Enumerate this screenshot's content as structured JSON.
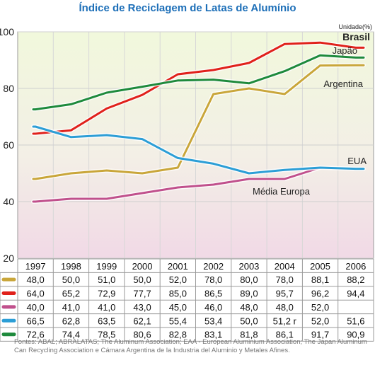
{
  "chart_data": {
    "type": "line",
    "title": "Índice de Reciclagem de Latas de Alumínio",
    "unit_label": "Unidade(%)",
    "ylim": [
      20,
      100
    ],
    "yticks": [
      20,
      40,
      60,
      80,
      100
    ],
    "grid": true,
    "background": "gradient light-green top to pink bottom",
    "categories": [
      "1997",
      "1998",
      "1999",
      "2000",
      "2001",
      "2002",
      "2003",
      "2004",
      "2005",
      "2006"
    ],
    "series": [
      {
        "name": "Argentina",
        "color": "#c9a63a",
        "values": [
          48.0,
          50.0,
          51.0,
          50.0,
          52.0,
          78.0,
          80.0,
          78.0,
          88.1,
          88.2
        ],
        "labels": [
          "48,0",
          "50,0",
          "51,0",
          "50,0",
          "52,0",
          "78,0",
          "80,0",
          "78,0",
          "88,1",
          "88,2"
        ]
      },
      {
        "name": "Brasil",
        "color": "#e0211b",
        "values": [
          64.0,
          65.2,
          72.9,
          77.7,
          85.0,
          86.5,
          89.0,
          95.7,
          96.2,
          94.4
        ],
        "labels": [
          "64,0",
          "65,2",
          "72,9",
          "77,7",
          "85,0",
          "86,5",
          "89,0",
          "95,7",
          "96,2",
          "94,4"
        ]
      },
      {
        "name": "Média Europa",
        "color": "#c0508c",
        "values": [
          40.0,
          41.0,
          41.0,
          43.0,
          45.0,
          46.0,
          48.0,
          48.0,
          52.0,
          null
        ],
        "labels": [
          "40,0",
          "41,0",
          "41,0",
          "43,0",
          "45,0",
          "46,0",
          "48,0",
          "48,0",
          "52,0",
          ""
        ]
      },
      {
        "name": "EUA",
        "color": "#2c9ed6",
        "values": [
          66.5,
          62.8,
          63.5,
          62.1,
          55.4,
          53.4,
          50.0,
          51.2,
          52.0,
          51.6
        ],
        "labels": [
          "66,5",
          "62,8",
          "63,5",
          "62,1",
          "55,4",
          "53,4",
          "50,0",
          "51,2 r",
          "52,0",
          "51,6"
        ]
      },
      {
        "name": "Japão",
        "color": "#1e8a3c",
        "values": [
          72.6,
          74.4,
          78.5,
          80.6,
          82.8,
          83.1,
          81.8,
          86.1,
          91.7,
          90.9
        ],
        "labels": [
          "72,6",
          "74,4",
          "78,5",
          "80,6",
          "82,8",
          "83,1",
          "81,8",
          "86,1",
          "91,7",
          "90,9"
        ]
      }
    ]
  },
  "source_text": "Fontes: ABAL; ABRALATAS; The Aluminum Association; EAA - European Aluminium Association; The Japan Aluminum Can Recycling Association e Cámara Argentina de la Industria del Aluminio y Metales Afines."
}
